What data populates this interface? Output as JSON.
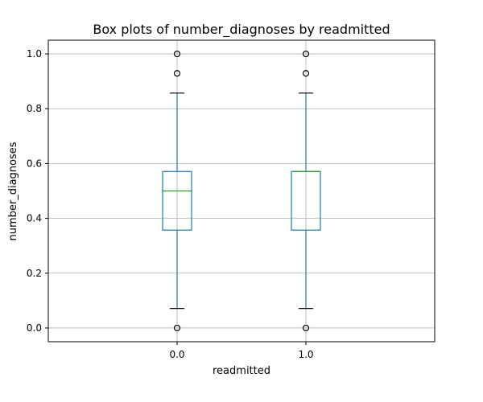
{
  "chart_data": {
    "type": "box",
    "title": "Box plots of number_diagnoses by readmitted",
    "xlabel": "readmitted",
    "ylabel": "number_diagnoses",
    "ylim": [
      -0.05,
      1.05
    ],
    "yticks": [
      0.0,
      0.2,
      0.4,
      0.6,
      0.8,
      1.0
    ],
    "ytick_labels": [
      "0.0",
      "0.2",
      "0.4",
      "0.6",
      "0.8",
      "1.0"
    ],
    "grid": true,
    "categories": [
      "0.0",
      "1.0"
    ],
    "boxes": [
      {
        "category": "0.0",
        "whisker_low": 0.0714,
        "q1": 0.357,
        "median": 0.5,
        "q3": 0.571,
        "whisker_high": 0.857,
        "outliers": [
          0.0,
          0.929,
          1.0
        ]
      },
      {
        "category": "1.0",
        "whisker_low": 0.0714,
        "q1": 0.357,
        "median": 0.571,
        "q3": 0.571,
        "whisker_high": 0.857,
        "outliers": [
          0.0,
          0.929,
          1.0
        ]
      }
    ],
    "colors": {
      "box": "#1f77b4",
      "median": "#2ca02c",
      "cap": "#000000",
      "grid": "#b0b0b0",
      "outlier": "#000000"
    }
  }
}
